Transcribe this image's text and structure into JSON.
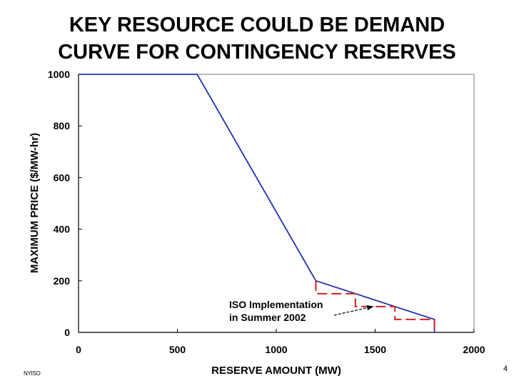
{
  "slide": {
    "title_line1": "KEY RESOURCE COULD BE DEMAND",
    "title_line2": "CURVE FOR CONTINGENCY RESERVES",
    "footer_logo": "NYISO",
    "page_number": "4"
  },
  "chart_data": {
    "type": "line",
    "title": "KEY RESOURCE COULD BE DEMAND CURVE FOR CONTINGENCY RESERVES",
    "xlabel": "RESERVE AMOUNT (MW)",
    "ylabel": "MAXIMUM PRICE ($/MW-hr)",
    "xlim": [
      0,
      2000
    ],
    "ylim": [
      0,
      1000
    ],
    "x_ticks": [
      0,
      500,
      1000,
      1500,
      2000
    ],
    "x_tick_labels": [
      "0",
      "500",
      "1000",
      "1500",
      "2000"
    ],
    "y_ticks": [
      0,
      200,
      400,
      600,
      800,
      1000
    ],
    "y_tick_labels": [
      "0",
      "200",
      "400",
      "600",
      "800",
      "1000"
    ],
    "grid": false,
    "series": [
      {
        "name": "Demand curve",
        "color": "#2030b0",
        "style": "solid",
        "x": [
          0,
          600,
          1200,
          1800,
          1800
        ],
        "y": [
          1000,
          1000,
          200,
          50,
          0
        ]
      },
      {
        "name": "ISO Implementation in Summer 2002",
        "color": "#d42020",
        "style": "dashed",
        "x": [
          1200,
          1200,
          1400,
          1400,
          1600,
          1600,
          1800,
          1800
        ],
        "y": [
          200,
          150,
          150,
          100,
          100,
          50,
          50,
          0
        ]
      }
    ],
    "annotations": [
      {
        "line1": "ISO Implementation",
        "line2": "in Summer 2002",
        "arrow_to": [
          1500,
          100
        ]
      }
    ]
  }
}
